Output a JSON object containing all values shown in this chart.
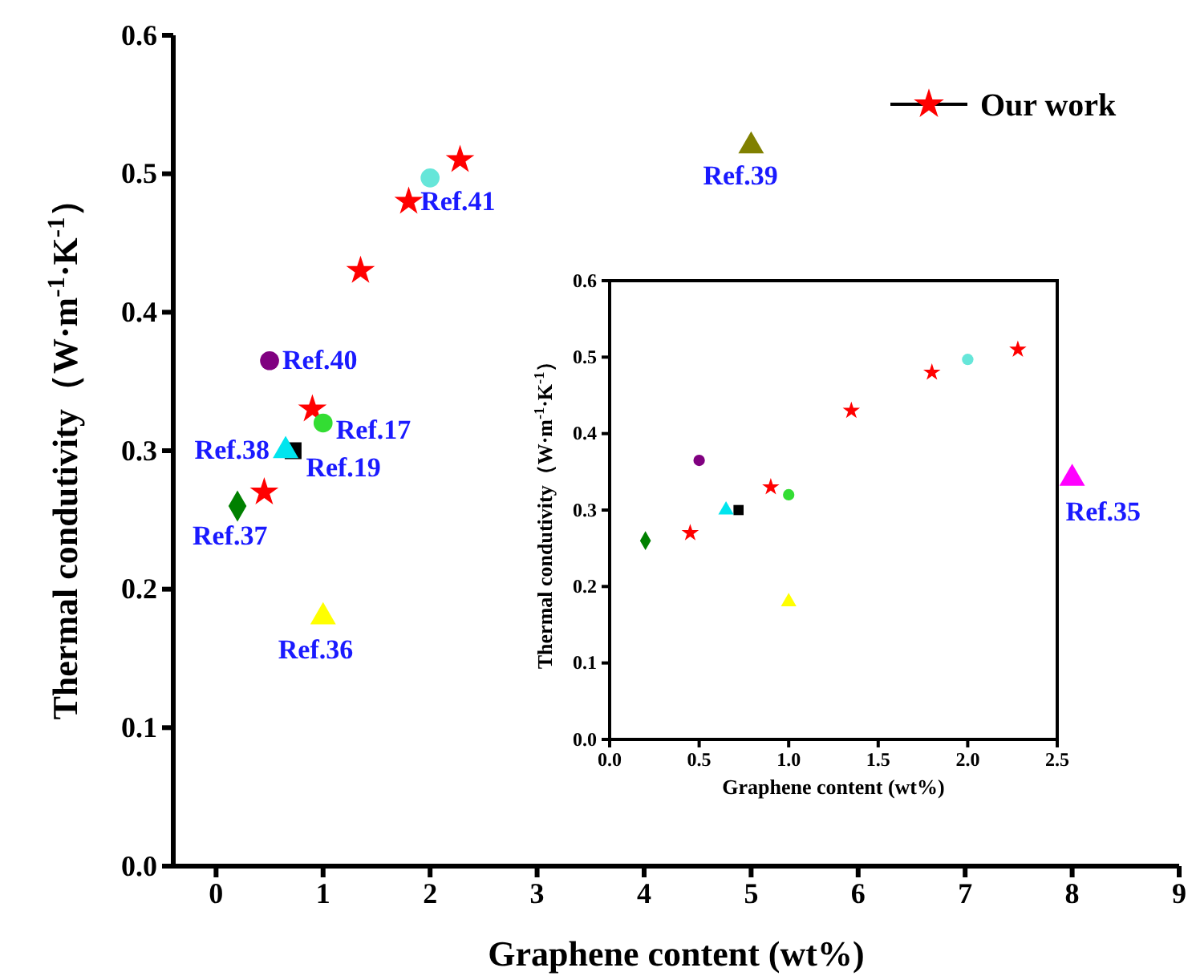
{
  "chart_data": [
    {
      "type": "scatter",
      "xlabel": "Graphene content (wt%)",
      "ylabel": "Thermal condutivity（W·m$^{-1}$·K$^{-1}$）",
      "xlim": [
        -0.4,
        9
      ],
      "xticks": [
        0,
        1,
        2,
        3,
        4,
        5,
        6,
        7,
        8,
        9
      ],
      "ylim": [
        0,
        0.6
      ],
      "yticks": [
        {
          "value": 0,
          "label": "0.0"
        },
        0.1,
        0.2,
        0.3,
        0.4,
        0.5,
        0.6
      ],
      "grid": false,
      "legend": "top right",
      "series": [
        {
          "name": "Our work",
          "color": "#ff0000",
          "marker": "star",
          "x": [
            0.45,
            0.9,
            1.35,
            1.8,
            2.28
          ],
          "values": [
            0.27,
            0.33,
            0.43,
            0.48,
            0.51
          ]
        },
        {
          "name": "Ref.37",
          "color": "#008000",
          "marker": "diamond",
          "x": [
            0.2
          ],
          "values": [
            0.26
          ]
        },
        {
          "name": "Ref.40",
          "color": "#800080",
          "marker": "circle",
          "x": [
            0.5
          ],
          "values": [
            0.365
          ]
        },
        {
          "name": "Ref.19",
          "color": "#000000",
          "marker": "square",
          "x": [
            0.72
          ],
          "values": [
            0.3
          ]
        },
        {
          "name": "Ref.38",
          "color": "#00e5ee",
          "marker": "triangle",
          "x": [
            0.65
          ],
          "values": [
            0.3
          ]
        },
        {
          "name": "Ref.17",
          "color": "#33dd33",
          "marker": "circle",
          "x": [
            1.0
          ],
          "values": [
            0.32
          ]
        },
        {
          "name": "Ref.36",
          "color": "#ffff00",
          "marker": "triangle",
          "x": [
            1.0
          ],
          "values": [
            0.18
          ]
        },
        {
          "name": "Ref.41",
          "color": "#66e6d9",
          "marker": "circle",
          "x": [
            2.0
          ],
          "values": [
            0.497
          ]
        },
        {
          "name": "Ref.39",
          "color": "#808000",
          "marker": "triangle",
          "x": [
            5.0
          ],
          "values": [
            0.52
          ]
        },
        {
          "name": "Ref.35",
          "color": "#ff00ff",
          "marker": "triangle",
          "x": [
            8.0
          ],
          "values": [
            0.28
          ]
        }
      ]
    },
    {
      "type": "scatter",
      "xlabel": "Graphene content (wt%)",
      "ylabel": "Thermal condutivity（W·m$^{-1}$·K$^{-1}$）",
      "xlim": [
        0,
        2.5
      ],
      "xticks": [
        {
          "value": 0,
          "label": "0.0"
        },
        0.5,
        {
          "value": 1,
          "label": "1.0"
        },
        1.5,
        {
          "value": 2,
          "label": "2.0"
        },
        2.5
      ],
      "ylim": [
        0,
        0.6
      ],
      "yticks": [
        {
          "value": 0,
          "label": "0.0"
        },
        0.1,
        0.2,
        0.3,
        0.4,
        0.5,
        0.6
      ],
      "grid": false,
      "series": [
        {
          "color": "#ff0000",
          "marker": "star",
          "x": [
            0.45,
            0.9,
            1.35,
            1.8,
            2.28
          ],
          "values": [
            0.27,
            0.33,
            0.43,
            0.48,
            0.51
          ]
        },
        {
          "color": "#008000",
          "marker": "diamond",
          "x": [
            0.2
          ],
          "values": [
            0.26
          ]
        },
        {
          "color": "#800080",
          "marker": "circle",
          "x": [
            0.5
          ],
          "values": [
            0.365
          ]
        },
        {
          "color": "#000000",
          "marker": "square",
          "x": [
            0.72
          ],
          "values": [
            0.3
          ]
        },
        {
          "color": "#00e5ee",
          "marker": "triangle",
          "x": [
            0.65
          ],
          "values": [
            0.3
          ]
        },
        {
          "color": "#33dd33",
          "marker": "circle",
          "x": [
            1.0
          ],
          "values": [
            0.32
          ]
        },
        {
          "color": "#ffff00",
          "marker": "triangle",
          "x": [
            1.0
          ],
          "values": [
            0.18
          ]
        },
        {
          "color": "#66e6d9",
          "marker": "circle",
          "x": [
            2.0
          ],
          "values": [
            0.497
          ]
        }
      ]
    }
  ]
}
